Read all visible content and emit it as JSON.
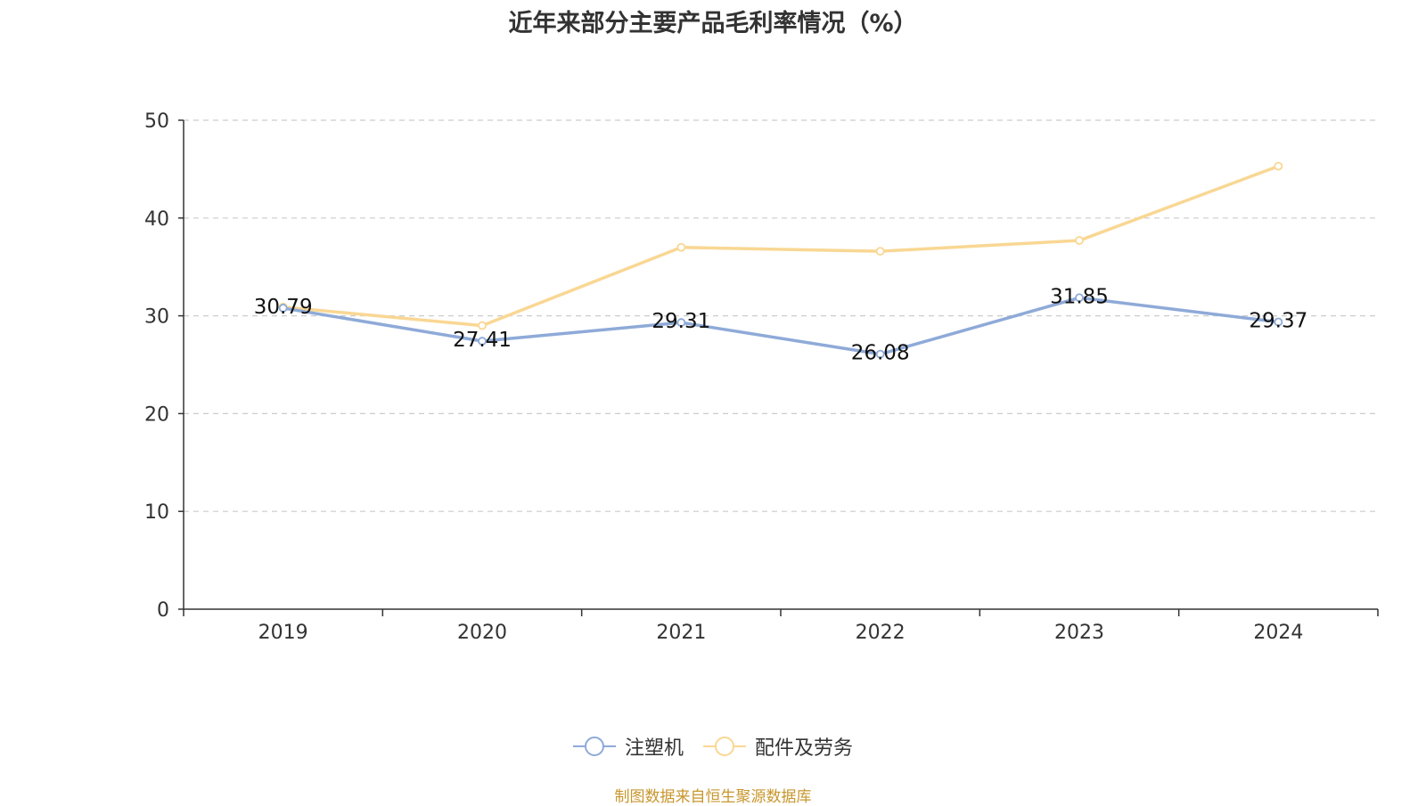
{
  "title": "近年来部分主要产品毛利率情况（%）",
  "source": "制图数据来自恒生聚源数据库",
  "colors": {
    "series1": "#8eaad8",
    "series2": "#f9d793",
    "grid": "#cccccc",
    "axis": "#333333"
  },
  "chart_data": {
    "type": "line",
    "title": "近年来部分主要产品毛利率情况（%）",
    "categories": [
      "2019",
      "2020",
      "2021",
      "2022",
      "2023",
      "2024"
    ],
    "ylim": [
      0,
      50
    ],
    "yticks": [
      "0",
      "10",
      "20",
      "30",
      "40",
      "50"
    ],
    "grid": true,
    "legend_position": "bottom-center",
    "series": [
      {
        "name": "注塑机",
        "values": [
          30.79,
          27.41,
          29.31,
          26.08,
          31.85,
          29.37
        ],
        "labels": [
          "30.79",
          "27.41",
          "29.31",
          "26.08",
          "31.85",
          "29.37"
        ],
        "show_labels": true
      },
      {
        "name": "配件及劳务",
        "values": [
          30.9,
          29.0,
          37.0,
          36.6,
          37.7,
          45.3
        ],
        "show_labels": false
      }
    ]
  }
}
